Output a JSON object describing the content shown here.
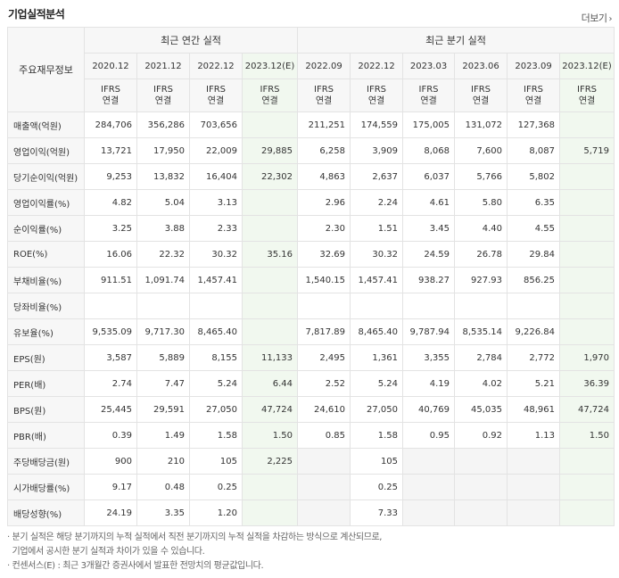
{
  "title": "기업실적분석",
  "more_label": "더보기",
  "header": {
    "row_label": "주요재무정보",
    "annual_label": "최근 연간 실적",
    "quarter_label": "최근 분기 실적",
    "annual_periods": [
      "2020.12",
      "2021.12",
      "2022.12",
      "2023.12(E)"
    ],
    "quarter_periods": [
      "2022.09",
      "2022.12",
      "2023.03",
      "2023.06",
      "2023.09",
      "2023.12(E)"
    ],
    "basis_top": "IFRS",
    "basis_bottom": "연결"
  },
  "rows": [
    {
      "label": "매출액(억원)",
      "values": [
        "284,706",
        "356,286",
        "703,656",
        "",
        "211,251",
        "174,559",
        "175,005",
        "131,072",
        "127,368",
        ""
      ]
    },
    {
      "label": "영업이익(억원)",
      "values": [
        "13,721",
        "17,950",
        "22,009",
        "29,885",
        "6,258",
        "3,909",
        "8,068",
        "7,600",
        "8,087",
        "5,719"
      ]
    },
    {
      "label": "당기순이익(억원)",
      "values": [
        "9,253",
        "13,832",
        "16,404",
        "22,302",
        "4,863",
        "2,637",
        "6,037",
        "5,766",
        "5,802",
        ""
      ]
    },
    {
      "label": "영업이익률(%)",
      "values": [
        "4.82",
        "5.04",
        "3.13",
        "",
        "2.96",
        "2.24",
        "4.61",
        "5.80",
        "6.35",
        ""
      ]
    },
    {
      "label": "순이익률(%)",
      "values": [
        "3.25",
        "3.88",
        "2.33",
        "",
        "2.30",
        "1.51",
        "3.45",
        "4.40",
        "4.55",
        ""
      ]
    },
    {
      "label": "ROE(%)",
      "values": [
        "16.06",
        "22.32",
        "30.32",
        "35.16",
        "32.69",
        "30.32",
        "24.59",
        "26.78",
        "29.84",
        ""
      ]
    },
    {
      "label": "부채비율(%)",
      "values": [
        "911.51",
        "1,091.74",
        "1,457.41",
        "",
        "1,540.15",
        "1,457.41",
        "938.27",
        "927.93",
        "856.25",
        ""
      ]
    },
    {
      "label": "당좌비율(%)",
      "values": [
        "",
        "",
        "",
        "",
        "",
        "",
        "",
        "",
        "",
        ""
      ]
    },
    {
      "label": "유보율(%)",
      "values": [
        "9,535.09",
        "9,717.30",
        "8,465.40",
        "",
        "7,817.89",
        "8,465.40",
        "9,787.94",
        "8,535.14",
        "9,226.84",
        ""
      ]
    },
    {
      "label": "EPS(원)",
      "values": [
        "3,587",
        "5,889",
        "8,155",
        "11,133",
        "2,495",
        "1,361",
        "3,355",
        "2,784",
        "2,772",
        "1,970"
      ]
    },
    {
      "label": "PER(배)",
      "values": [
        "2.74",
        "7.47",
        "5.24",
        "6.44",
        "2.52",
        "5.24",
        "4.19",
        "4.02",
        "5.21",
        "36.39"
      ]
    },
    {
      "label": "BPS(원)",
      "values": [
        "25,445",
        "29,591",
        "27,050",
        "47,724",
        "24,610",
        "27,050",
        "40,769",
        "45,035",
        "48,961",
        "47,724"
      ]
    },
    {
      "label": "PBR(배)",
      "values": [
        "0.39",
        "1.49",
        "1.58",
        "1.50",
        "0.85",
        "1.58",
        "0.95",
        "0.92",
        "1.13",
        "1.50"
      ]
    },
    {
      "label": "주당배당금(원)",
      "values": [
        "900",
        "210",
        "105",
        "2,225",
        "",
        "105",
        "",
        "",
        "",
        ""
      ]
    },
    {
      "label": "시가배당률(%)",
      "values": [
        "9.17",
        "0.48",
        "0.25",
        "",
        "",
        "0.25",
        "",
        "",
        "",
        ""
      ]
    },
    {
      "label": "배당성향(%)",
      "values": [
        "24.19",
        "3.35",
        "1.20",
        "",
        "",
        "7.33",
        "",
        "",
        "",
        ""
      ]
    }
  ],
  "notes": [
    "· 분기 실적은 해당 분기까지의 누적 실적에서 직전 분기까지의 누적 실적을 차감하는 방식으로 계산되므로,",
    "  기업에서 공시한 분기 실적과 차이가 있을 수 있습니다.",
    "· 컨센서스(E) : 최근 3개월간 증권사에서 발표한 전망치의 평균값입니다."
  ]
}
